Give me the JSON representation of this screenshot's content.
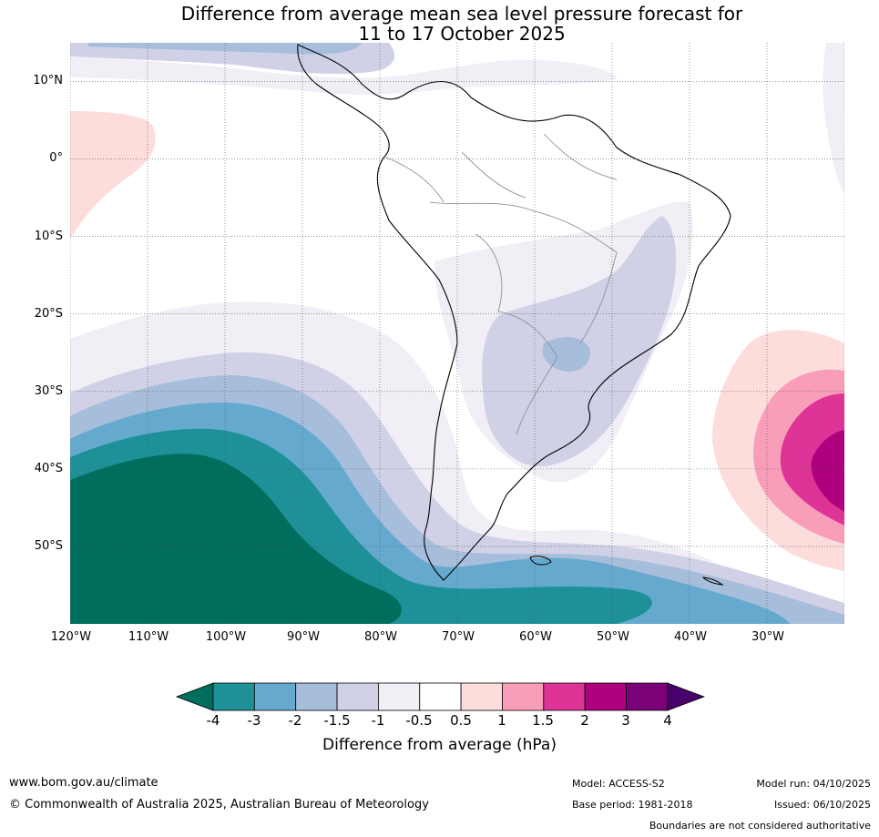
{
  "title_line1": "Difference from average mean sea level pressure forecast for",
  "title_line2": "11 to 17 October 2025",
  "map": {
    "lat_range": [
      -60,
      15
    ],
    "lon_range": [
      -120,
      -20
    ],
    "lat_labels": [
      "10°N",
      "0°",
      "10°S",
      "20°S",
      "30°S",
      "40°S",
      "50°S"
    ],
    "lon_labels": [
      "120°W",
      "110°W",
      "100°W",
      "90°W",
      "80°W",
      "70°W",
      "60°W",
      "50°W",
      "40°W",
      "30°W"
    ]
  },
  "colorbar": {
    "ticks": [
      "-4",
      "-3",
      "-2",
      "-1.5",
      "-1",
      "-0.5",
      "0.5",
      "1",
      "1.5",
      "2",
      "3",
      "4"
    ],
    "colors": [
      "#006e5c",
      "#1e9198",
      "#66a9cf",
      "#a6bddb",
      "#d0d1e6",
      "#f1eef6",
      "#ffffff",
      "#fddcdc",
      "#f99eb9",
      "#de3497",
      "#ae017e",
      "#7a0177",
      "#49006a"
    ],
    "label": "Difference from average (hPa)"
  },
  "footer": {
    "website": "www.bom.gov.au/climate",
    "copyright": "© Commonwealth of Australia 2025, Australian Bureau of Meteorology",
    "model": "Model: ACCESS-S2",
    "base_period": "Base period: 1981-2018",
    "model_run": "Model run: 04/10/2025",
    "issued": "Issued: 06/10/2025",
    "disclaimer": "Boundaries are not considered authoritative"
  }
}
